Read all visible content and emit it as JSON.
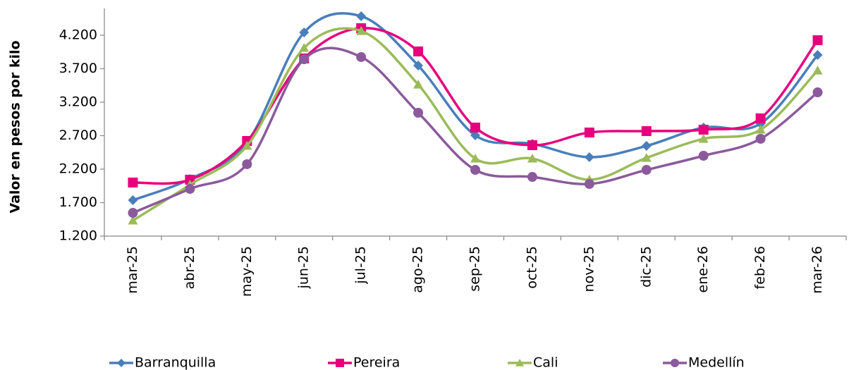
{
  "chart_data": {
    "type": "line",
    "smooth": true,
    "y_label": "Valor en pesos por kilo",
    "categories": [
      "mar-25",
      "abr-25",
      "may-25",
      "jun-25",
      "jul-25",
      "ago-25",
      "sep-25",
      "oct-25",
      "nov-25",
      "dic-25",
      "ene-26",
      "feb-26",
      "mar-26"
    ],
    "series": [
      {
        "name": "Barranquilla",
        "color": "#4a7ebb",
        "marker": "diamond",
        "values": [
          1737,
          2053,
          2600,
          4242,
          4484,
          3747,
          2705,
          2579,
          2379,
          2547,
          2821,
          2880,
          3905
        ]
      },
      {
        "name": "Pereira",
        "color": "#e6007e",
        "marker": "square",
        "values": [
          2000,
          2042,
          2621,
          3853,
          4305,
          3958,
          2821,
          2558,
          2747,
          2768,
          2789,
          2958,
          4126
        ]
      },
      {
        "name": "Cali",
        "color": "#9bbb59",
        "marker": "triangle",
        "values": [
          1432,
          1968,
          2550,
          4011,
          4263,
          3463,
          2358,
          2358,
          2042,
          2368,
          2653,
          2789,
          3674
        ]
      },
      {
        "name": "Medellín",
        "color": "#8b5a9b",
        "marker": "circle",
        "values": [
          1547,
          1905,
          2274,
          3842,
          3874,
          3042,
          2189,
          2084,
          1979,
          2189,
          2400,
          2653,
          3347
        ]
      }
    ],
    "ylim": [
      1200,
      4600
    ],
    "yticks": [
      {
        "value": 1200,
        "label": "1.200"
      },
      {
        "value": 1700,
        "label": "1.700"
      },
      {
        "value": 2200,
        "label": "2.200"
      },
      {
        "value": 2700,
        "label": "2.700"
      },
      {
        "value": 3200,
        "label": "3.200"
      },
      {
        "value": 3700,
        "label": "3.700"
      },
      {
        "value": 4200,
        "label": "4.200"
      }
    ],
    "legend": "bottom"
  }
}
